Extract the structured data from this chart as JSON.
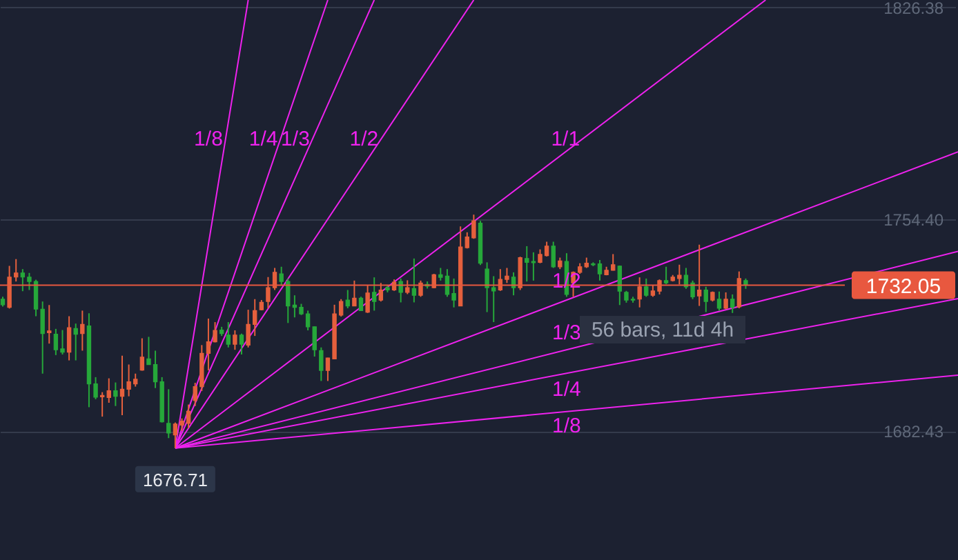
{
  "chart_data": {
    "type": "candlestick",
    "categories": [
      null,
      null,
      null,
      null,
      null,
      null,
      null,
      null,
      null,
      null,
      null,
      null,
      null,
      null,
      null,
      null,
      null,
      null,
      null,
      null,
      null,
      null,
      null,
      null,
      null,
      null,
      null,
      null,
      null,
      null,
      null,
      null,
      null,
      null,
      null,
      null,
      null,
      null,
      null,
      null,
      null,
      null,
      null,
      null,
      null,
      null,
      null,
      null,
      null,
      null,
      null,
      null,
      null,
      null,
      null,
      null,
      null,
      null,
      null,
      null,
      null,
      null,
      null,
      null,
      null,
      null,
      null,
      null,
      null,
      null,
      null,
      null,
      null,
      null,
      null,
      null,
      null,
      null,
      null,
      null,
      null,
      null,
      null,
      null,
      null,
      null,
      null,
      null,
      null,
      null,
      null,
      null,
      null,
      null,
      null,
      null,
      null,
      null,
      null,
      null,
      null,
      null,
      null,
      null,
      null,
      null,
      null,
      null,
      null,
      null,
      null,
      null,
      null,
      null,
      null,
      null,
      null,
      null,
      null,
      null,
      null,
      null,
      null,
      null,
      null,
      null,
      null,
      null,
      null,
      null,
      null,
      null,
      null,
      null,
      null,
      null,
      null,
      null,
      null,
      null,
      null,
      null,
      null,
      null,
      null
    ],
    "ohlc": [
      [
        1727.3,
        1728.1,
        1724.8,
        1725.4
      ],
      [
        1724.5,
        1738.6,
        1724.1,
        1734.8
      ],
      [
        1734.8,
        1740.9,
        1733.3,
        1736.2
      ],
      [
        1736.2,
        1737.5,
        1730.0,
        1734.8
      ],
      [
        1734.8,
        1736.2,
        1730.4,
        1733.3
      ],
      [
        1733.3,
        1733.9,
        1721.5,
        1723.9
      ],
      [
        1723.9,
        1726.5,
        1702.0,
        1715.6
      ],
      [
        1715.9,
        1725.3,
        1712.2,
        1716.5
      ],
      [
        1715.4,
        1717.2,
        1708.3,
        1710.1
      ],
      [
        1710.4,
        1716.8,
        1708.5,
        1709.3
      ],
      [
        1709.3,
        1721.5,
        1706.5,
        1717.6
      ],
      [
        1717.3,
        1719.0,
        1706.5,
        1715.4
      ],
      [
        1715.6,
        1723.4,
        1709.8,
        1718.7
      ],
      [
        1718.2,
        1722.5,
        1690.6,
        1698.5
      ],
      [
        1698.5,
        1700.8,
        1693.3,
        1694.0
      ],
      [
        1694.1,
        1695.7,
        1687.4,
        1694.6
      ],
      [
        1693.9,
        1700.4,
        1692.1,
        1696.2
      ],
      [
        1696.2,
        1699.0,
        1691.0,
        1694.3
      ],
      [
        1694.3,
        1708.1,
        1687.9,
        1696.7
      ],
      [
        1696.7,
        1705.1,
        1694.3,
        1699.2
      ],
      [
        1698.5,
        1702.0,
        1697.6,
        1700.1
      ],
      [
        1703.2,
        1714.0,
        1703.0,
        1707.6
      ],
      [
        1707.0,
        1714.5,
        1705.0,
        1705.1
      ],
      [
        1705.1,
        1709.8,
        1697.1,
        1699.2
      ],
      [
        1699.2,
        1700.8,
        1685.4,
        1685.6
      ],
      [
        1685.1,
        1696.7,
        1680.1,
        1681.8
      ],
      [
        1681.2,
        1685.4,
        1676.71,
        1684.9
      ],
      [
        1684.5,
        1686.8,
        1682.6,
        1685.9
      ],
      [
        1685.1,
        1691.5,
        1683.5,
        1689.2
      ],
      [
        1692.9,
        1698.9,
        1691.0,
        1697.6
      ],
      [
        1697.6,
        1711.7,
        1696.1,
        1708.9
      ],
      [
        1708.9,
        1720.7,
        1703.1,
        1712.8
      ],
      [
        1712.8,
        1719.5,
        1712.6,
        1716.7
      ],
      [
        1716.8,
        1717.9,
        1714.8,
        1715.6
      ],
      [
        1715.1,
        1719.5,
        1710.9,
        1712.0
      ],
      [
        1712.0,
        1716.7,
        1710.1,
        1715.1
      ],
      [
        1715.1,
        1715.6,
        1708.5,
        1712.0
      ],
      [
        1711.7,
        1723.7,
        1710.9,
        1718.7
      ],
      [
        1718.7,
        1727.3,
        1714.8,
        1723.4
      ],
      [
        1723.7,
        1727.0,
        1723.5,
        1726.2
      ],
      [
        1726.5,
        1734.8,
        1724.2,
        1731.2
      ],
      [
        1731.2,
        1737.9,
        1730.4,
        1736.4
      ],
      [
        1735.9,
        1738.3,
        1732.0,
        1733.3
      ],
      [
        1733.3,
        1734.3,
        1719.2,
        1725.0
      ],
      [
        1725.3,
        1728.6,
        1721.1,
        1724.5
      ],
      [
        1724.5,
        1725.7,
        1721.9,
        1722.3
      ],
      [
        1722.3,
        1723.4,
        1716.7,
        1717.9
      ],
      [
        1717.9,
        1718.0,
        1707.8,
        1710.1
      ],
      [
        1709.8,
        1710.9,
        1699.5,
        1703.1
      ],
      [
        1703.1,
        1707.4,
        1699.5,
        1707.3
      ],
      [
        1707.0,
        1725.4,
        1706.9,
        1722.3
      ],
      [
        1721.9,
        1727.3,
        1721.4,
        1726.5
      ],
      [
        1727.0,
        1730.4,
        1724.2,
        1725.0
      ],
      [
        1725.0,
        1733.6,
        1724.9,
        1727.6
      ],
      [
        1727.6,
        1728.1,
        1723.3,
        1723.4
      ],
      [
        1722.9,
        1732.0,
        1722.6,
        1729.4
      ],
      [
        1729.6,
        1734.7,
        1723.4,
        1726.5
      ],
      [
        1727.0,
        1732.8,
        1726.5,
        1730.4
      ],
      [
        1731.2,
        1732.0,
        1729.6,
        1730.4
      ],
      [
        1730.4,
        1734.0,
        1730.1,
        1733.1
      ],
      [
        1733.3,
        1734.3,
        1726.2,
        1729.6
      ],
      [
        1729.6,
        1733.7,
        1729.0,
        1731.2
      ],
      [
        1730.9,
        1741.1,
        1726.2,
        1728.6
      ],
      [
        1728.6,
        1733.6,
        1728.1,
        1732.8
      ],
      [
        1732.3,
        1733.3,
        1730.9,
        1731.7
      ],
      [
        1731.2,
        1735.9,
        1731.0,
        1735.6
      ],
      [
        1735.6,
        1737.9,
        1733.6,
        1734.7
      ],
      [
        1735.1,
        1737.5,
        1728.1,
        1728.9
      ],
      [
        1729.2,
        1734.3,
        1724.5,
        1727.0
      ],
      [
        1725.0,
        1752.0,
        1724.9,
        1745.0
      ],
      [
        1744.8,
        1750.0,
        1744.5,
        1748.4
      ],
      [
        1748.1,
        1756.0,
        1747.8,
        1753.9
      ],
      [
        1753.1,
        1753.9,
        1738.9,
        1739.5
      ],
      [
        1737.5,
        1739.8,
        1722.9,
        1731.2
      ],
      [
        1731.2,
        1735.1,
        1719.5,
        1730.1
      ],
      [
        1730.4,
        1737.5,
        1730.1,
        1734.0
      ],
      [
        1734.0,
        1737.9,
        1732.8,
        1735.1
      ],
      [
        1734.8,
        1736.4,
        1728.6,
        1731.2
      ],
      [
        1731.2,
        1741.7,
        1730.4,
        1741.4
      ],
      [
        1741.1,
        1745.3,
        1733.3,
        1739.8
      ],
      [
        1740.1,
        1743.2,
        1733.6,
        1739.7
      ],
      [
        1739.8,
        1744.2,
        1739.5,
        1742.5
      ],
      [
        1742.1,
        1746.8,
        1741.8,
        1745.3
      ],
      [
        1745.3,
        1746.8,
        1737.9,
        1738.3
      ],
      [
        1738.3,
        1741.4,
        1737.5,
        1740.3
      ],
      [
        1740.1,
        1742.9,
        1728.1,
        1728.9
      ],
      [
        1732.8,
        1736.7,
        1728.1,
        1736.4
      ],
      [
        1736.4,
        1739.5,
        1735.9,
        1738.3
      ],
      [
        1738.3,
        1741.4,
        1737.9,
        1739.5
      ],
      [
        1739.3,
        1739.8,
        1738.5,
        1739.0
      ],
      [
        1739.3,
        1740.6,
        1733.6,
        1735.9
      ],
      [
        1735.6,
        1738.3,
        1735.4,
        1737.1
      ],
      [
        1737.1,
        1742.6,
        1737.0,
        1739.0
      ],
      [
        1738.5,
        1738.7,
        1725.3,
        1730.0
      ],
      [
        1729.6,
        1730.1,
        1726.1,
        1727.0
      ],
      [
        1727.3,
        1728.1,
        1726.1,
        1727.0
      ],
      [
        1727.3,
        1734.7,
        1724.5,
        1731.5
      ],
      [
        1731.5,
        1734.3,
        1728.1,
        1728.6
      ],
      [
        1728.6,
        1732.0,
        1728.1,
        1730.1
      ],
      [
        1730.0,
        1734.0,
        1728.9,
        1733.6
      ],
      [
        1733.6,
        1738.3,
        1732.4,
        1732.8
      ],
      [
        1733.6,
        1735.5,
        1733.3,
        1734.8
      ],
      [
        1734.3,
        1739.0,
        1732.3,
        1735.4
      ],
      [
        1735.4,
        1737.9,
        1730.8,
        1731.5
      ],
      [
        1732.8,
        1733.6,
        1727.3,
        1728.1
      ],
      [
        1728.4,
        1745.8,
        1725.0,
        1730.4
      ],
      [
        1730.4,
        1731.5,
        1722.9,
        1726.5
      ],
      [
        1727.0,
        1729.9,
        1726.5,
        1729.6
      ],
      [
        1727.3,
        1729.9,
        1723.4,
        1724.2
      ],
      [
        1724.2,
        1729.6,
        1723.9,
        1727.3
      ],
      [
        1727.3,
        1728.9,
        1722.6,
        1724.5
      ],
      [
        1724.7,
        1736.7,
        1724.2,
        1734.3
      ],
      [
        1733.6,
        1734.3,
        1730.8,
        1732.05
      ],
      null,
      null,
      null,
      null,
      null,
      null,
      null,
      null,
      null,
      null,
      null,
      null,
      null,
      null,
      null,
      null,
      null,
      null,
      null,
      null,
      null,
      null,
      null,
      null,
      null,
      null,
      null,
      null,
      null,
      null,
      null,
      null
    ],
    "colors": [
      "#26a83a",
      "#e5603d",
      "#e5603d",
      "#26a83a",
      "#26a83a",
      "#26a83a",
      "#26a83a",
      "#e5603d",
      "#26a83a",
      "#26a83a",
      "#e5603d",
      "#26a83a",
      "#e5603d",
      "#26a83a",
      "#26a83a",
      "#e5603d",
      "#e5603d",
      "#26a83a",
      "#e5603d",
      "#e5603d",
      "#e5603d",
      "#e5603d",
      "#26a83a",
      "#26a83a",
      "#26a83a",
      "#26a83a",
      "#e5603d",
      "#e5603d",
      "#e5603d",
      "#e5603d",
      "#e5603d",
      "#e5603d",
      "#e5603d",
      "#26a83a",
      "#26a83a",
      "#e5603d",
      "#26a83a",
      "#e5603d",
      "#e5603d",
      "#e5603d",
      "#e5603d",
      "#e5603d",
      "#26a83a",
      "#26a83a",
      "#26a83a",
      "#26a83a",
      "#26a83a",
      "#26a83a",
      "#26a83a",
      "#e5603d",
      "#e5603d",
      "#e5603d",
      "#26a83a",
      "#e5603d",
      "#26a83a",
      "#e5603d",
      "#26a83a",
      "#e5603d",
      "#26a83a",
      "#e5603d",
      "#26a83a",
      "#e5603d",
      "#26a83a",
      "#e5603d",
      "#26a83a",
      "#e5603d",
      "#26a83a",
      "#26a83a",
      "#26a83a",
      "#e5603d",
      "#e5603d",
      "#e5603d",
      "#26a83a",
      "#26a83a",
      "#26a83a",
      "#e5603d",
      "#e5603d",
      "#26a83a",
      "#e5603d",
      "#26a83a",
      "#26a83a",
      "#e5603d",
      "#e5603d",
      "#26a83a",
      "#e5603d",
      "#26a83a",
      "#e5603d",
      "#e5603d",
      "#e5603d",
      "#26a83a",
      "#26a83a",
      "#e5603d",
      "#e5603d",
      "#26a83a",
      "#26a83a",
      "#26a83a",
      "#e5603d",
      "#26a83a",
      "#e5603d",
      "#e5603d",
      "#26a83a",
      "#e5603d",
      "#e5603d",
      "#26a83a",
      "#26a83a",
      "#e5603d",
      "#26a83a",
      "#e5603d",
      "#26a83a",
      "#e5603d",
      "#26a83a",
      "#e5603d",
      "#26a83a",
      null,
      null,
      null,
      null,
      null,
      null,
      null,
      null,
      null,
      null,
      null,
      null,
      null,
      null,
      null,
      null,
      null,
      null,
      null,
      null,
      null,
      null,
      null,
      null,
      null,
      null,
      null,
      null,
      null,
      null,
      null,
      null
    ],
    "series": [
      {
        "type": "line",
        "name": "1/8",
        "color": "#ee22ee",
        "values": [
          null,
          null,
          null,
          null,
          null,
          null,
          null,
          null,
          null,
          null,
          null,
          null,
          null,
          null,
          null,
          null,
          null,
          null,
          null,
          null,
          null,
          null,
          null,
          null,
          null,
          null,
          1676.71,
          null,
          null,
          null,
          null,
          null,
          null,
          null,
          null,
          null,
          null,
          1828.9,
          null,
          null,
          null,
          null,
          null,
          null,
          null,
          null,
          null,
          null,
          null,
          null,
          null,
          null,
          null,
          null,
          null,
          null,
          null,
          null,
          null,
          null,
          null,
          null,
          null,
          null,
          null,
          null,
          null,
          null,
          null,
          null,
          null,
          null,
          null,
          null,
          null,
          null,
          null,
          null,
          null,
          null,
          null,
          null,
          null,
          null,
          null,
          null,
          null,
          null,
          null,
          null,
          null,
          null,
          null,
          null,
          null,
          null,
          null,
          null,
          null,
          null,
          null,
          null,
          null,
          null,
          null,
          null,
          null,
          null,
          null,
          null,
          null,
          null,
          null,
          null,
          null,
          null,
          null,
          null,
          null,
          null,
          null,
          null,
          null,
          null,
          null,
          null,
          null,
          null,
          null,
          null,
          null,
          null,
          null,
          null,
          null,
          null,
          null,
          null,
          null,
          null,
          null,
          null,
          null,
          null,
          null
        ]
      },
      {
        "type": "line",
        "name": "1/4",
        "color": "#ee22ee",
        "values": [
          null,
          null,
          null,
          null,
          null,
          null,
          null,
          null,
          null,
          null,
          null,
          null,
          null,
          null,
          null,
          null,
          null,
          null,
          null,
          null,
          null,
          null,
          null,
          null,
          null,
          null,
          1676.71,
          null,
          null,
          null,
          null,
          null,
          null,
          null,
          null,
          null,
          null,
          null,
          null,
          null,
          null,
          null,
          null,
          null,
          null,
          null,
          null,
          null,
          null,
          1828.9,
          null,
          null,
          null,
          null,
          null,
          null,
          null,
          null,
          null,
          null,
          null,
          null,
          null,
          null,
          null,
          null,
          null,
          null,
          null,
          null,
          null,
          null,
          null,
          null,
          null,
          null,
          null,
          null,
          null,
          null,
          null,
          null,
          null,
          null,
          null,
          null,
          null,
          null,
          null,
          null,
          null,
          null,
          null,
          null,
          null,
          null,
          null,
          null,
          null,
          null,
          null,
          null,
          null,
          null,
          null,
          null,
          null,
          null,
          null,
          null,
          null,
          null,
          null,
          null,
          null,
          null,
          null,
          null,
          null,
          null,
          null,
          null,
          null,
          null,
          null,
          null,
          null,
          null,
          null,
          null,
          null,
          null,
          null,
          null,
          null,
          null,
          null,
          null,
          null,
          null,
          null,
          null,
          null,
          null,
          null
        ]
      },
      {
        "type": "line",
        "name": "1/3",
        "color": "#ee22ee",
        "values": [
          null,
          null,
          null,
          null,
          null,
          null,
          null,
          null,
          null,
          null,
          null,
          null,
          null,
          null,
          null,
          null,
          null,
          null,
          null,
          null,
          null,
          null,
          null,
          null,
          null,
          null,
          1676.71,
          null,
          null,
          null,
          null,
          null,
          null,
          null,
          null,
          null,
          null,
          null,
          null,
          null,
          null,
          null,
          null,
          null,
          null,
          null,
          null,
          null,
          null,
          null,
          null,
          null,
          null,
          null,
          null,
          null,
          1828.9,
          null,
          null,
          null,
          null,
          null,
          null,
          null,
          null,
          null,
          null,
          null,
          null,
          null,
          null,
          null,
          null,
          null,
          null,
          null,
          null,
          null,
          null,
          null,
          null,
          null,
          null,
          null,
          null,
          null,
          null,
          null,
          null,
          null,
          null,
          null,
          null,
          null,
          null,
          null,
          null,
          null,
          null,
          null,
          null,
          null,
          null,
          null,
          null,
          null,
          null,
          null,
          null,
          null,
          null,
          null,
          null,
          null,
          null,
          null,
          null,
          null,
          null,
          null,
          null,
          null,
          null,
          null,
          null,
          null,
          null,
          null,
          null,
          null,
          null,
          null,
          null,
          null,
          null,
          null,
          null,
          null,
          null,
          null,
          null,
          null,
          null,
          null,
          null
        ]
      },
      {
        "type": "line",
        "name": "1/2",
        "color": "#ee22ee",
        "values": [
          null,
          null,
          null,
          null,
          null,
          null,
          null,
          null,
          null,
          null,
          null,
          null,
          null,
          null,
          null,
          null,
          null,
          null,
          null,
          null,
          null,
          null,
          null,
          null,
          null,
          null,
          1676.71,
          null,
          null,
          null,
          null,
          null,
          null,
          null,
          null,
          null,
          null,
          null,
          null,
          null,
          null,
          null,
          null,
          null,
          null,
          null,
          null,
          null,
          null,
          null,
          null,
          null,
          null,
          null,
          null,
          null,
          null,
          null,
          null,
          null,
          null,
          null,
          null,
          null,
          null,
          null,
          null,
          null,
          null,
          null,
          null,
          1828.9,
          null,
          null,
          null,
          null,
          null,
          null,
          null,
          null,
          null,
          null,
          null,
          null,
          null,
          null,
          null,
          null,
          null,
          null,
          null,
          null,
          null,
          null,
          null,
          null,
          null,
          null,
          null,
          null,
          null,
          null,
          null,
          null,
          null,
          null,
          null,
          null,
          null,
          null,
          null,
          null,
          null,
          null,
          null,
          null,
          null,
          null,
          null,
          null,
          null,
          null,
          null,
          null,
          null,
          null,
          null,
          null,
          null,
          null,
          null,
          null,
          null,
          null,
          null,
          null,
          null,
          null,
          null,
          null,
          null,
          null,
          null,
          null,
          null
        ]
      },
      {
        "type": "line",
        "name": "1/1",
        "color": "#ee22ee",
        "values": [
          null,
          null,
          null,
          null,
          null,
          null,
          null,
          null,
          null,
          null,
          null,
          null,
          null,
          null,
          null,
          null,
          null,
          null,
          null,
          null,
          null,
          null,
          null,
          null,
          null,
          null,
          1676.71,
          null,
          null,
          null,
          null,
          null,
          null,
          null,
          null,
          null,
          null,
          null,
          null,
          null,
          null,
          null,
          null,
          null,
          null,
          null,
          null,
          null,
          null,
          null,
          null,
          null,
          null,
          null,
          null,
          null,
          null,
          null,
          null,
          null,
          null,
          null,
          null,
          null,
          null,
          null,
          null,
          null,
          null,
          null,
          null,
          null,
          null,
          null,
          null,
          null,
          null,
          null,
          null,
          null,
          null,
          null,
          null,
          null,
          null,
          null,
          null,
          null,
          null,
          null,
          null,
          null,
          null,
          null,
          null,
          null,
          null,
          null,
          null,
          null,
          null,
          null,
          null,
          null,
          null,
          null,
          null,
          null,
          null,
          null,
          null,
          null,
          null,
          null,
          null,
          1828.9,
          null,
          null,
          null,
          null,
          null,
          null,
          null,
          null,
          null,
          null,
          null,
          null,
          null,
          null,
          null,
          null,
          null,
          null,
          null,
          null,
          null,
          null,
          null,
          null,
          null,
          null,
          null,
          null,
          null
        ]
      },
      {
        "type": "line",
        "name": "1/2",
        "color": "#ee22ee",
        "values": [
          null,
          null,
          null,
          null,
          null,
          null,
          null,
          null,
          null,
          null,
          null,
          null,
          null,
          null,
          null,
          null,
          null,
          null,
          null,
          null,
          null,
          null,
          null,
          null,
          null,
          null,
          1676.71,
          null,
          null,
          null,
          null,
          null,
          null,
          null,
          null,
          null,
          null,
          null,
          null,
          null,
          null,
          null,
          null,
          null,
          null,
          null,
          null,
          null,
          null,
          null,
          null,
          null,
          null,
          null,
          null,
          null,
          null,
          null,
          null,
          null,
          null,
          null,
          null,
          null,
          null,
          null,
          null,
          null,
          null,
          null,
          null,
          null,
          null,
          null,
          null,
          null,
          null,
          null,
          null,
          null,
          null,
          null,
          null,
          null,
          null,
          null,
          null,
          null,
          null,
          null,
          null,
          null,
          null,
          null,
          null,
          null,
          null,
          null,
          null,
          null,
          null,
          null,
          null,
          null,
          null,
          null,
          null,
          null,
          null,
          null,
          null,
          null,
          null,
          null,
          null,
          null,
          null,
          null,
          null,
          null,
          null,
          null,
          null,
          null,
          null,
          null,
          null,
          null,
          null,
          null,
          null,
          null,
          null,
          null,
          null,
          null,
          null,
          null,
          null,
          null,
          null,
          null,
          null,
          null,
          1777.3
        ]
      },
      {
        "type": "line",
        "name": "1/3",
        "color": "#ee22ee",
        "values": [
          null,
          null,
          null,
          null,
          null,
          null,
          null,
          null,
          null,
          null,
          null,
          null,
          null,
          null,
          null,
          null,
          null,
          null,
          null,
          null,
          null,
          null,
          null,
          null,
          null,
          null,
          1676.71,
          null,
          null,
          null,
          null,
          null,
          null,
          null,
          null,
          null,
          null,
          null,
          null,
          null,
          null,
          null,
          null,
          null,
          null,
          null,
          null,
          null,
          null,
          null,
          null,
          null,
          null,
          null,
          null,
          null,
          null,
          null,
          null,
          null,
          null,
          null,
          null,
          null,
          null,
          null,
          null,
          null,
          null,
          null,
          null,
          null,
          null,
          null,
          null,
          null,
          null,
          null,
          null,
          null,
          null,
          null,
          null,
          null,
          null,
          null,
          null,
          null,
          null,
          null,
          null,
          null,
          null,
          null,
          null,
          null,
          null,
          null,
          null,
          null,
          null,
          null,
          null,
          null,
          null,
          null,
          null,
          null,
          null,
          null,
          null,
          null,
          null,
          null,
          null,
          null,
          null,
          null,
          null,
          null,
          null,
          null,
          null,
          null,
          null,
          null,
          null,
          null,
          null,
          null,
          null,
          null,
          null,
          null,
          null,
          null,
          null,
          null,
          null,
          null,
          null,
          null,
          null,
          null,
          1743.5
        ]
      },
      {
        "type": "line",
        "name": "1/4",
        "color": "#ee22ee",
        "values": [
          null,
          null,
          null,
          null,
          null,
          null,
          null,
          null,
          null,
          null,
          null,
          null,
          null,
          null,
          null,
          null,
          null,
          null,
          null,
          null,
          null,
          null,
          null,
          null,
          null,
          null,
          1676.71,
          null,
          null,
          null,
          null,
          null,
          null,
          null,
          null,
          null,
          null,
          null,
          null,
          null,
          null,
          null,
          null,
          null,
          null,
          null,
          null,
          null,
          null,
          null,
          null,
          null,
          null,
          null,
          null,
          null,
          null,
          null,
          null,
          null,
          null,
          null,
          null,
          null,
          null,
          null,
          null,
          null,
          null,
          null,
          null,
          null,
          null,
          null,
          null,
          null,
          null,
          null,
          null,
          null,
          null,
          null,
          null,
          null,
          null,
          null,
          null,
          null,
          null,
          null,
          null,
          null,
          null,
          null,
          null,
          null,
          null,
          null,
          null,
          null,
          null,
          null,
          null,
          null,
          null,
          null,
          null,
          null,
          null,
          null,
          null,
          null,
          null,
          null,
          null,
          null,
          null,
          null,
          null,
          null,
          null,
          null,
          null,
          null,
          null,
          null,
          null,
          null,
          null,
          null,
          null,
          null,
          null,
          null,
          null,
          null,
          null,
          null,
          null,
          null,
          null,
          null,
          null,
          null,
          1727.5
        ]
      },
      {
        "type": "line",
        "name": "1/8",
        "color": "#ee22ee",
        "values": [
          null,
          null,
          null,
          null,
          null,
          null,
          null,
          null,
          null,
          null,
          null,
          null,
          null,
          null,
          null,
          null,
          null,
          null,
          null,
          null,
          null,
          null,
          null,
          null,
          null,
          null,
          1676.71,
          null,
          null,
          null,
          null,
          null,
          null,
          null,
          null,
          null,
          null,
          null,
          null,
          null,
          null,
          null,
          null,
          null,
          null,
          null,
          null,
          null,
          null,
          null,
          null,
          null,
          null,
          null,
          null,
          null,
          null,
          null,
          null,
          null,
          null,
          null,
          null,
          null,
          null,
          null,
          null,
          null,
          null,
          null,
          null,
          null,
          null,
          null,
          null,
          null,
          null,
          null,
          null,
          null,
          null,
          null,
          null,
          null,
          null,
          null,
          null,
          null,
          null,
          null,
          null,
          null,
          null,
          null,
          null,
          null,
          null,
          null,
          null,
          null,
          null,
          null,
          null,
          null,
          null,
          null,
          null,
          null,
          null,
          null,
          null,
          null,
          null,
          null,
          null,
          null,
          null,
          null,
          null,
          null,
          null,
          null,
          null,
          null,
          null,
          null,
          null,
          null,
          null,
          null,
          null,
          null,
          null,
          null,
          null,
          null,
          null,
          null,
          null,
          null,
          null,
          null,
          null,
          null,
          1701.5
        ]
      }
    ],
    "ylim": [
      1638.7,
      1828.9
    ],
    "yticks": [
      1682.43,
      {
        "value": 1754.4,
        "label": "1754.40"
      },
      1826.38
    ],
    "grid": "y",
    "tick_labels": "y",
    "ref_lines": [
      {
        "axis": "y",
        "value": 1732.05,
        "label": "1732.05",
        "color": "#e8583f"
      }
    ],
    "annotations": [
      {
        "text": "1676.71",
        "y": 1676.71
      },
      "56 bars, 11d 4h"
    ]
  }
}
